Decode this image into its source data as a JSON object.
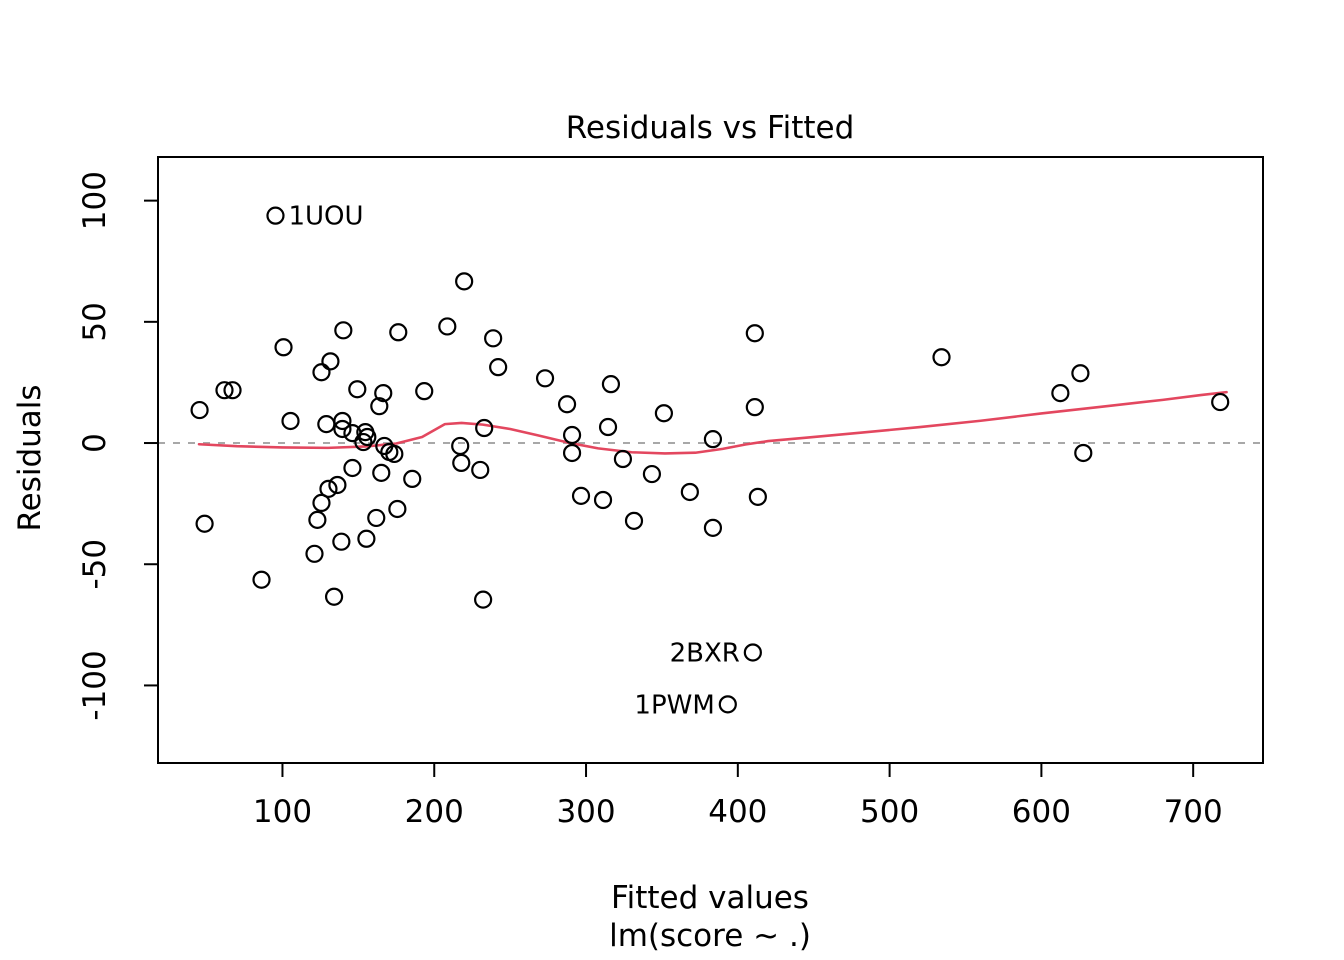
{
  "figure": {
    "title": "Residuals vs Fitted"
  },
  "chart_data": {
    "type": "scatter",
    "title": "Residuals vs Fitted",
    "xlabel": "Fitted values",
    "xlabel_sub": "lm(score ~ .)",
    "ylabel": "Residuals",
    "xlim": [
      18,
      746
    ],
    "ylim": [
      -132,
      118
    ],
    "x_ticks": [
      100,
      200,
      300,
      400,
      500,
      600,
      700
    ],
    "y_ticks": [
      -100,
      -50,
      0,
      50,
      100
    ],
    "grid": "off",
    "legend": "none",
    "zero_line": {
      "y": 0,
      "style": "dashed",
      "color": "#a8a8a8"
    },
    "point_style": {
      "shape": "open-circle",
      "color": "#000000",
      "radius_px": 8,
      "stroke_px": 2.2
    },
    "colors": {
      "smooth_line": "#e3475f",
      "zero_line": "#a8a8a8",
      "axis": "#000000",
      "background": "#ffffff",
      "text": "#000000"
    },
    "points": [
      [
        95.4,
        93.8
      ],
      [
        45.4,
        13.6
      ],
      [
        48.7,
        -33.3
      ],
      [
        61.8,
        21.8
      ],
      [
        67.1,
        21.8
      ],
      [
        86.2,
        -56.4
      ],
      [
        100.7,
        39.5
      ],
      [
        105.3,
        9.1
      ],
      [
        121.1,
        -45.7
      ],
      [
        123.0,
        -31.7
      ],
      [
        125.7,
        -24.7
      ],
      [
        125.7,
        29.2
      ],
      [
        128.9,
        7.8
      ],
      [
        130.3,
        -18.9
      ],
      [
        131.6,
        33.7
      ],
      [
        136.2,
        -17.3
      ],
      [
        134.0,
        -63.4
      ],
      [
        138.8,
        -40.7
      ],
      [
        140.1,
        46.5
      ],
      [
        139.5,
        9.1
      ],
      [
        139.5,
        5.8
      ],
      [
        146.1,
        4.1
      ],
      [
        149.3,
        22.2
      ],
      [
        146.1,
        -10.3
      ],
      [
        153.3,
        0.4
      ],
      [
        154.6,
        4.5
      ],
      [
        155.9,
        2.5
      ],
      [
        155.3,
        -39.5
      ],
      [
        161.8,
        -30.9
      ],
      [
        163.8,
        15.2
      ],
      [
        165.1,
        -12.3
      ],
      [
        166.4,
        20.6
      ],
      [
        167.1,
        -1.2
      ],
      [
        170.4,
        -3.7
      ],
      [
        173.7,
        -4.5
      ],
      [
        175.7,
        -27.2
      ],
      [
        176.3,
        45.7
      ],
      [
        185.5,
        -14.8
      ],
      [
        193.4,
        21.4
      ],
      [
        208.6,
        48.1
      ],
      [
        217.1,
        -1.2
      ],
      [
        217.8,
        -8.2
      ],
      [
        219.7,
        66.7
      ],
      [
        230.3,
        -11.1
      ],
      [
        232.2,
        -64.6
      ],
      [
        232.9,
        6.2
      ],
      [
        238.8,
        43.2
      ],
      [
        242.1,
        31.3
      ],
      [
        273.0,
        26.7
      ],
      [
        287.5,
        16.0
      ],
      [
        290.8,
        3.3
      ],
      [
        290.8,
        -4.1
      ],
      [
        296.7,
        -21.8
      ],
      [
        311.2,
        -23.5
      ],
      [
        314.5,
        6.6
      ],
      [
        316.4,
        24.3
      ],
      [
        324.3,
        -6.6
      ],
      [
        331.6,
        -32.1
      ],
      [
        343.4,
        -12.8
      ],
      [
        351.3,
        12.3
      ],
      [
        368.4,
        -20.2
      ],
      [
        383.6,
        1.6
      ],
      [
        383.6,
        -35.0
      ],
      [
        393.4,
        -107.8
      ],
      [
        409.9,
        -86.4
      ],
      [
        411.2,
        14.8
      ],
      [
        411.2,
        45.3
      ],
      [
        413.2,
        -22.2
      ],
      [
        534.2,
        35.4
      ],
      [
        612.5,
        20.6
      ],
      [
        625.7,
        28.8
      ],
      [
        627.6,
        -4.1
      ],
      [
        717.8,
        16.9
      ]
    ],
    "labeled_points": [
      {
        "text": "1UOU",
        "x": 95.4,
        "y": 93.8,
        "side": "right"
      },
      {
        "text": "2BXR",
        "x": 409.9,
        "y": -86.4,
        "side": "left"
      },
      {
        "text": "1PWM",
        "x": 393.4,
        "y": -107.8,
        "side": "left"
      }
    ],
    "smooth_line": [
      [
        45,
        -0.5
      ],
      [
        70,
        -1.3
      ],
      [
        100,
        -1.8
      ],
      [
        130,
        -2.0
      ],
      [
        155,
        -1.4
      ],
      [
        175,
        -0.2
      ],
      [
        192,
        2.5
      ],
      [
        207,
        7.8
      ],
      [
        218,
        8.3
      ],
      [
        232,
        7.6
      ],
      [
        250,
        5.8
      ],
      [
        268,
        3.2
      ],
      [
        288,
        0.2
      ],
      [
        308,
        -2.2
      ],
      [
        330,
        -3.8
      ],
      [
        352,
        -4.3
      ],
      [
        372,
        -4.0
      ],
      [
        390,
        -2.4
      ],
      [
        405,
        -0.6
      ],
      [
        420,
        0.8
      ],
      [
        445,
        2.2
      ],
      [
        480,
        4.2
      ],
      [
        520,
        6.6
      ],
      [
        560,
        9.2
      ],
      [
        600,
        12.2
      ],
      [
        640,
        15.0
      ],
      [
        680,
        17.8
      ],
      [
        705,
        19.8
      ],
      [
        722,
        21.0
      ]
    ]
  }
}
